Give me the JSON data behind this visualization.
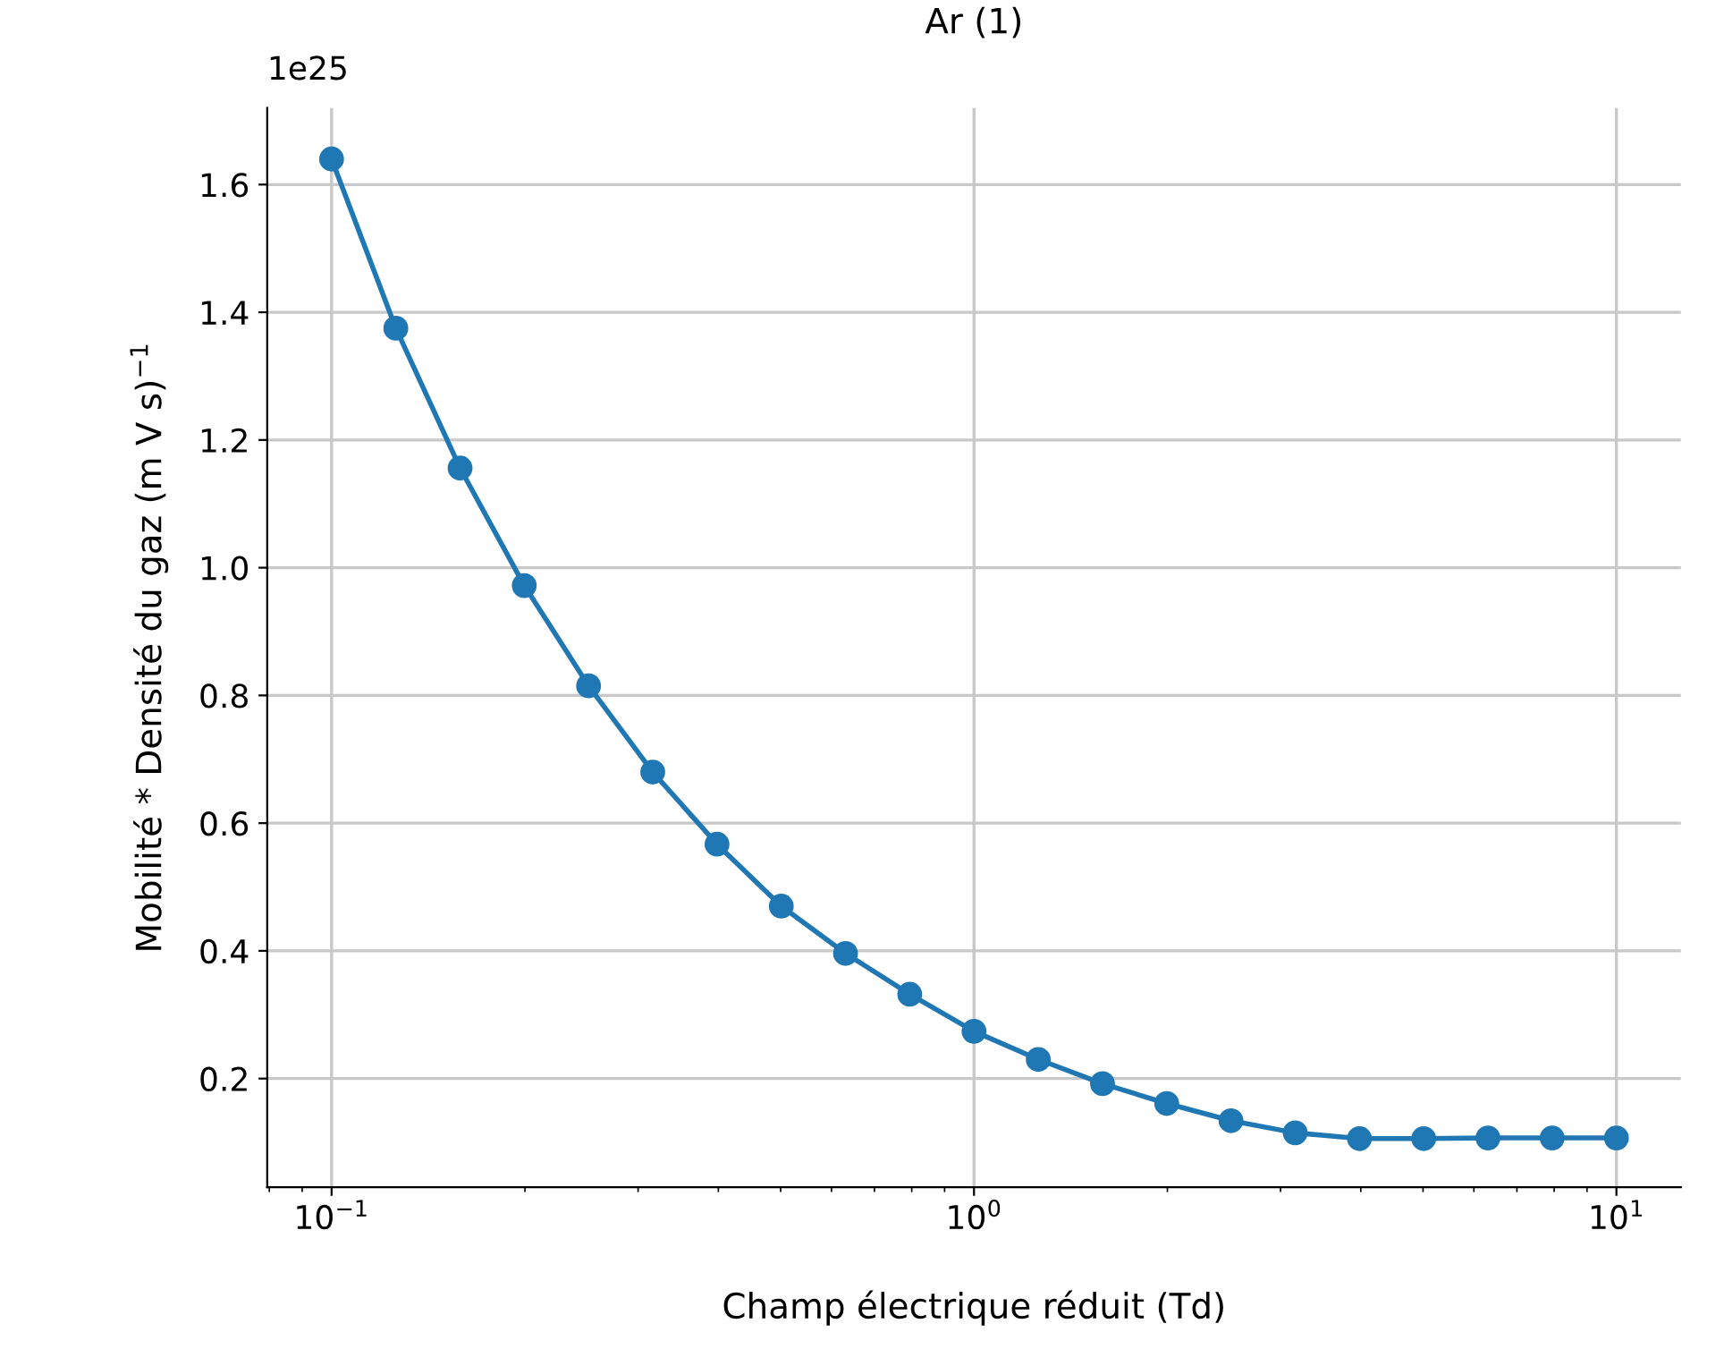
{
  "chart_data": {
    "type": "line",
    "title": "Ar (1)",
    "xlabel": "Champ électrique réduit (Td)",
    "ylabel": "Mobilité * Densité du gaz (m V s)$^{−1}$",
    "annotations": [
      "1e25"
    ],
    "x": [
      0.1,
      0.1259,
      0.1585,
      0.1995,
      0.2512,
      0.3162,
      0.3981,
      0.5012,
      0.631,
      0.7943,
      1.0,
      1.259,
      1.585,
      1.995,
      2.512,
      3.162,
      3.981,
      5.012,
      6.31,
      7.943,
      10.0
    ],
    "series": [
      {
        "color": "#1f77b4",
        "values": [
          1.64,
          1.375,
          1.156,
          0.972,
          0.815,
          0.68,
          0.567,
          0.47,
          0.396,
          0.332,
          0.274,
          0.23,
          0.192,
          0.161,
          0.134,
          0.115,
          0.106,
          0.106,
          0.107,
          0.107,
          0.107
        ]
      }
    ],
    "log": "x",
    "xlim": [
      0.0794,
      12.6
    ],
    "ylim": [
      0.03,
      1.72
    ],
    "xticks": [
      {
        "value": 0.1,
        "label": "10$^{−1}$"
      },
      {
        "value": 1,
        "label": "10$^{0}$"
      },
      {
        "value": 10,
        "label": "10$^{1}$"
      }
    ],
    "yticks": [
      {
        "value": 0.2,
        "label": "0.2"
      },
      {
        "value": 0.4,
        "label": "0.4"
      },
      {
        "value": 0.6,
        "label": "0.6"
      },
      {
        "value": 0.8,
        "label": "0.8"
      },
      {
        "value": 1.0,
        "label": "1.0"
      },
      {
        "value": 1.2,
        "label": "1.2"
      },
      {
        "value": 1.4,
        "label": "1.4"
      },
      {
        "value": 1.6,
        "label": "1.6"
      }
    ],
    "grid": true,
    "marker": "circle",
    "line_style": "solid"
  }
}
